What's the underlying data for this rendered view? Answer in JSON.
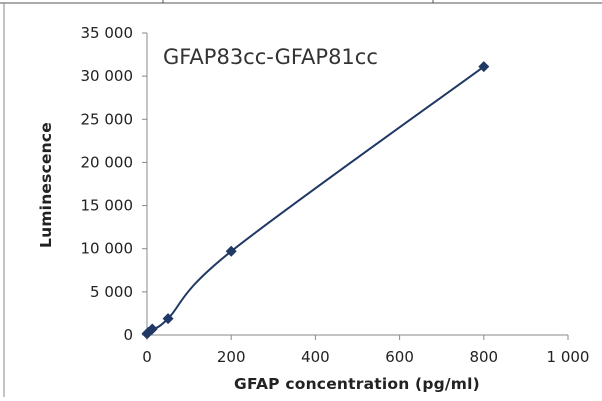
{
  "chart_data": {
    "type": "scatter",
    "title": "GFAP83cc-GFAP81cc",
    "xlabel": "GFAP concentration (pg/ml)",
    "ylabel": "Luminescence",
    "xlim": [
      0,
      1000
    ],
    "ylim": [
      0,
      35000
    ],
    "xticks": [
      0,
      200,
      400,
      600,
      800,
      1000
    ],
    "xtick_labels": [
      "0",
      "200",
      "400",
      "600",
      "800",
      "1 000"
    ],
    "yticks": [
      0,
      5000,
      10000,
      15000,
      20000,
      25000,
      30000,
      35000
    ],
    "ytick_labels": [
      "0",
      "5 000",
      "10 000",
      "15 000",
      "20 000",
      "25 000",
      "30 000",
      "35 000"
    ],
    "grid": false,
    "marker": "diamond",
    "line": "smooth",
    "series": [
      {
        "color": "#1f3864",
        "x": [
          0,
          3.125,
          12.5,
          50,
          200,
          800
        ],
        "y": [
          150,
          300,
          700,
          1900,
          9700,
          31100
        ]
      }
    ]
  }
}
